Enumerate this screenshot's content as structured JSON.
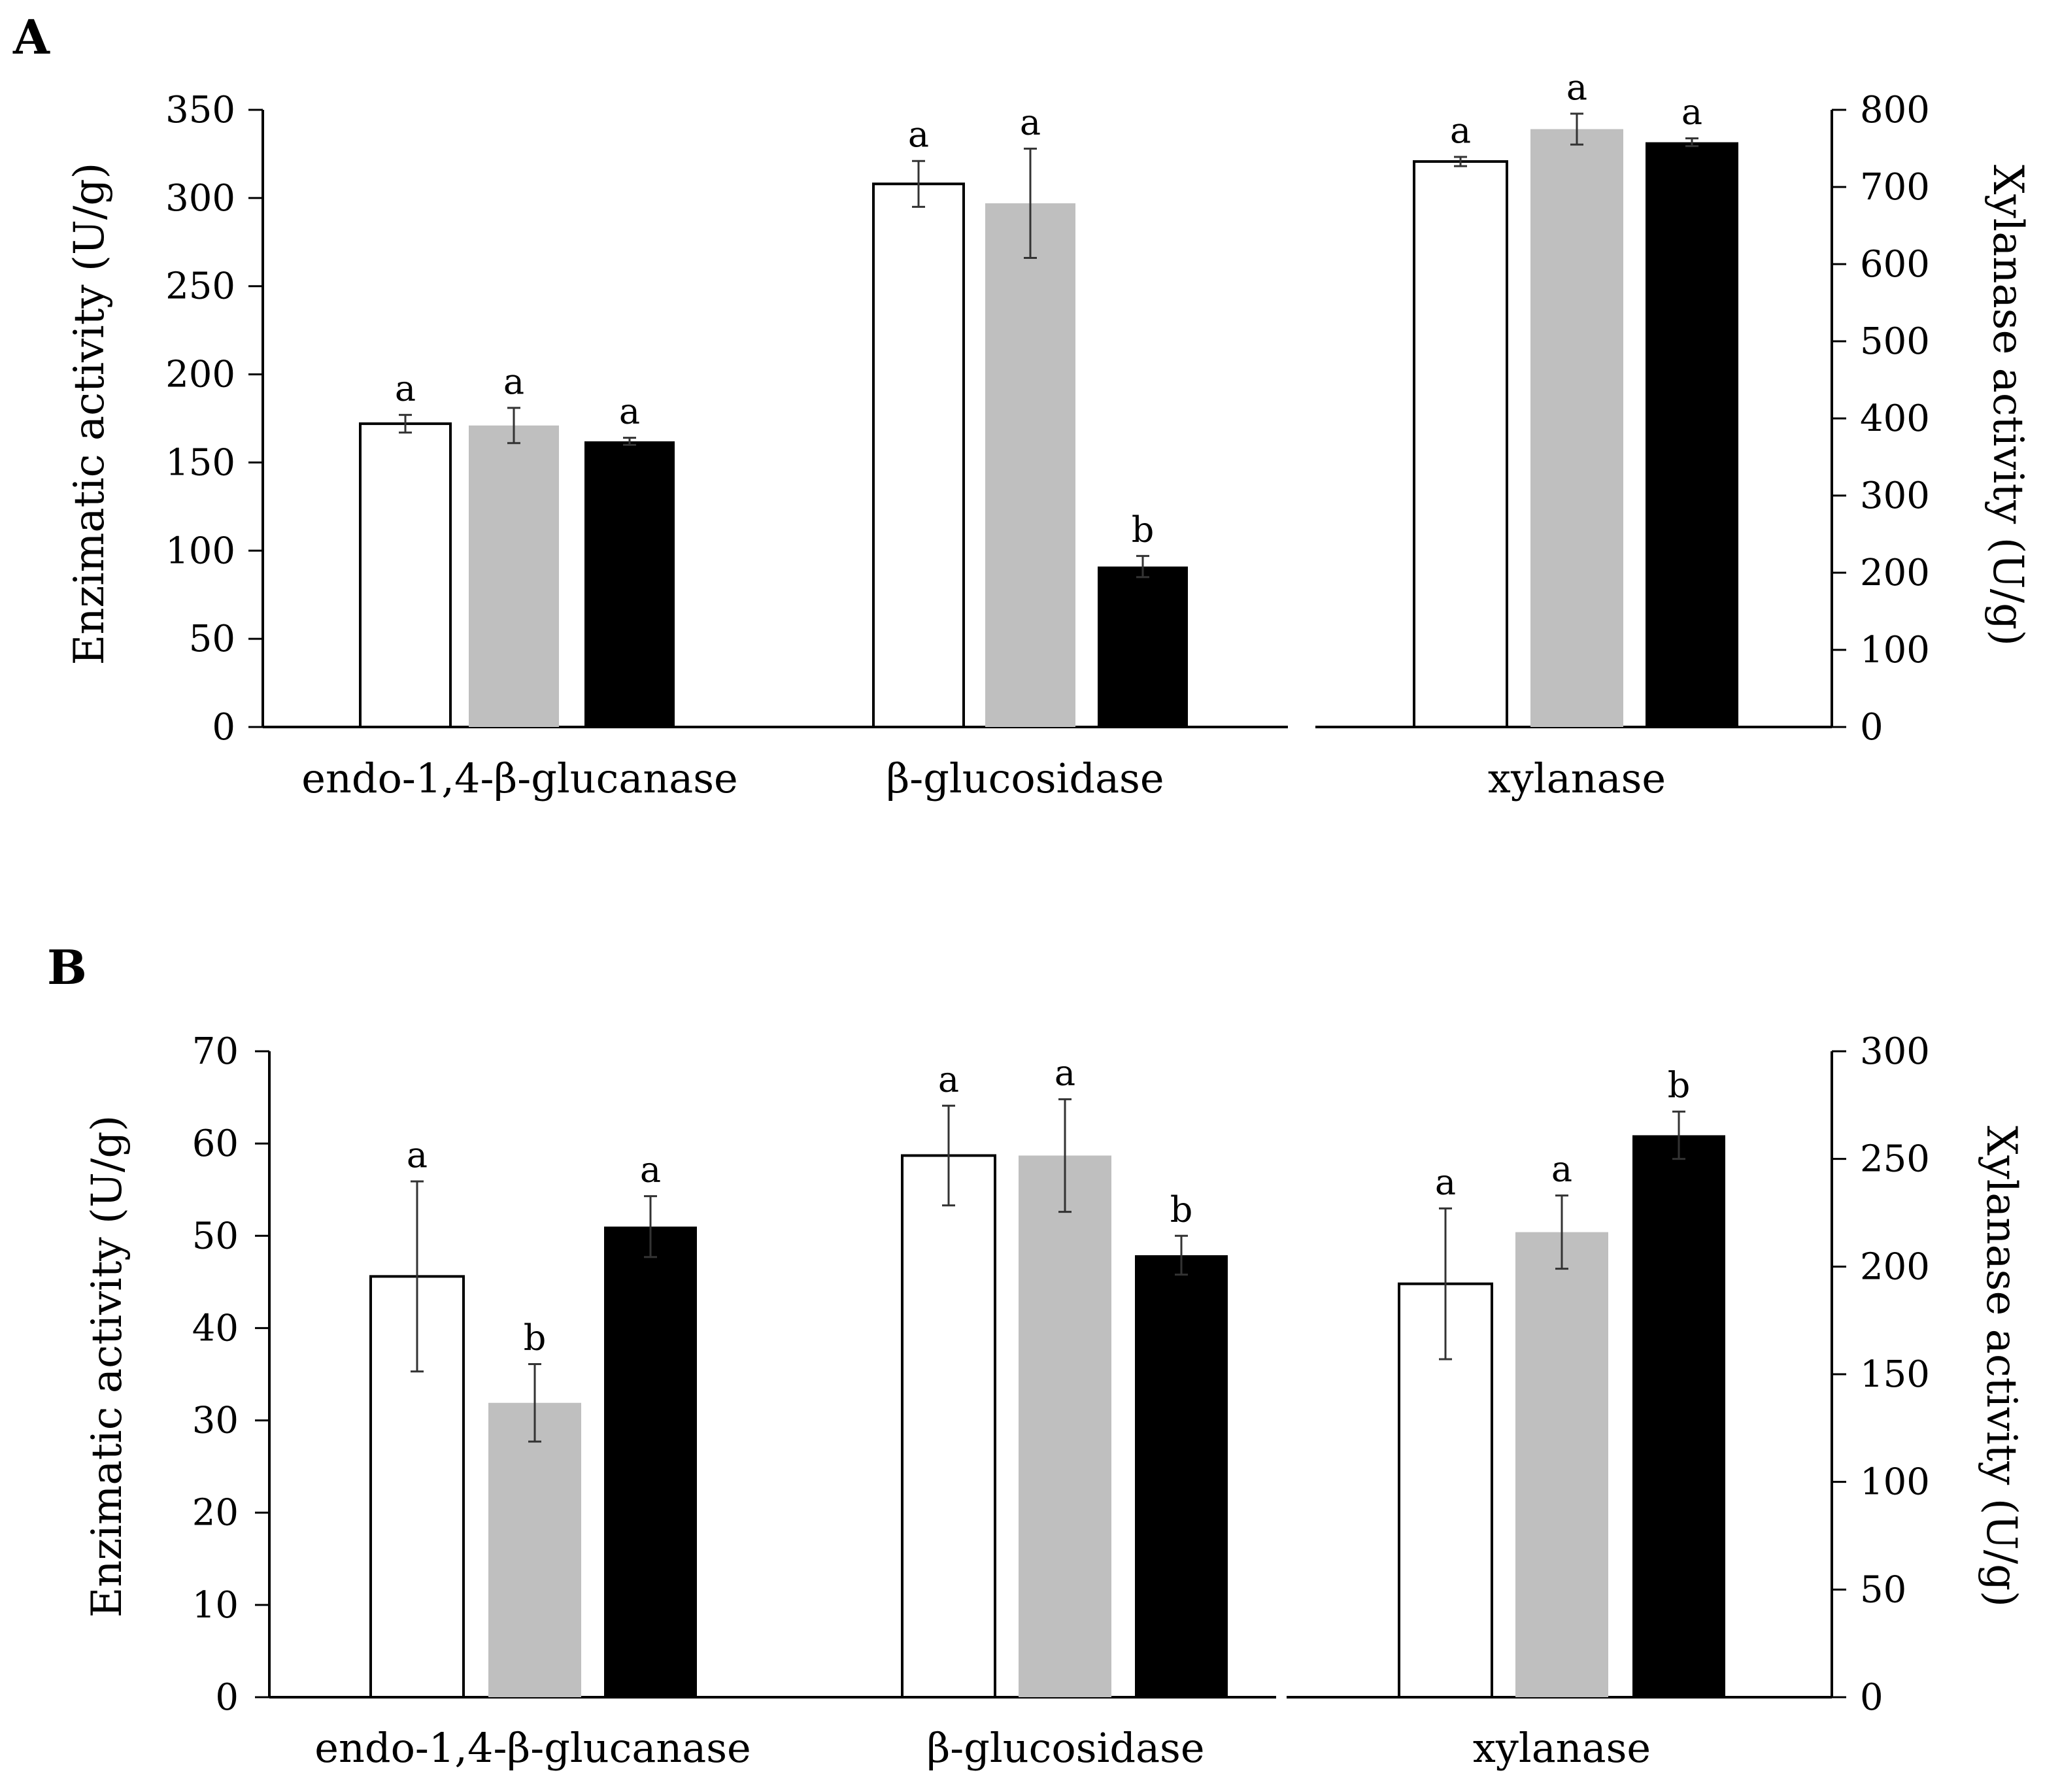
{
  "chart_data": [
    {
      "panel": "A",
      "type": "bar",
      "ylabel": "Enzimatic activity (U/g)",
      "y2label": "Xylanase activity (U/g)",
      "ylim": [
        0,
        350
      ],
      "yticks": [
        0,
        50,
        100,
        150,
        200,
        250,
        300,
        350
      ],
      "y2lim": [
        0,
        800
      ],
      "y2ticks": [
        0,
        100,
        200,
        300,
        400,
        500,
        600,
        700,
        800
      ],
      "bar_colors": [
        "#ffffff",
        "#bfbfbf",
        "#000000"
      ],
      "groups": [
        {
          "label": "endo-1,4-β-glucanase",
          "axis": "left",
          "values": [
            172,
            171,
            162
          ],
          "errors": [
            5,
            10,
            2
          ],
          "letters": [
            "a",
            "a",
            "a"
          ]
        },
        {
          "label": "β-glucosidase",
          "axis": "left",
          "values": [
            308,
            297,
            91
          ],
          "errors": [
            13,
            31,
            6
          ],
          "letters": [
            "a",
            "a",
            "b"
          ]
        },
        {
          "label": "xylanase",
          "axis": "right",
          "values": [
            733,
            775,
            758
          ],
          "errors": [
            6,
            20,
            5
          ],
          "letters": [
            "a",
            "a",
            "a"
          ]
        }
      ]
    },
    {
      "panel": "B",
      "type": "bar",
      "ylabel": "Enzimatic activity (U/g)",
      "y2label": "Xylanase activity (U/g)",
      "ylim": [
        0,
        70
      ],
      "yticks": [
        0,
        10,
        20,
        30,
        40,
        50,
        60,
        70
      ],
      "y2lim": [
        0,
        300
      ],
      "y2ticks": [
        0,
        50,
        100,
        150,
        200,
        250,
        300
      ],
      "bar_colors": [
        "#ffffff",
        "#bfbfbf",
        "#000000"
      ],
      "groups": [
        {
          "label": "endo-1,4-β-glucanase",
          "axis": "left",
          "values": [
            45.6,
            31.9,
            51
          ],
          "errors": [
            10.3,
            4.2,
            3.3
          ],
          "letters": [
            "a",
            "b",
            "a"
          ]
        },
        {
          "label": "β-glucosidase",
          "axis": "left",
          "values": [
            58.7,
            58.7,
            47.9
          ],
          "errors": [
            5.4,
            6.1,
            2.1
          ],
          "letters": [
            "a",
            "a",
            "b"
          ]
        },
        {
          "label": "xylanase",
          "axis": "right",
          "values": [
            192,
            216,
            261
          ],
          "errors": [
            35,
            17,
            11
          ],
          "letters": [
            "a",
            "a",
            "b"
          ]
        }
      ]
    }
  ]
}
